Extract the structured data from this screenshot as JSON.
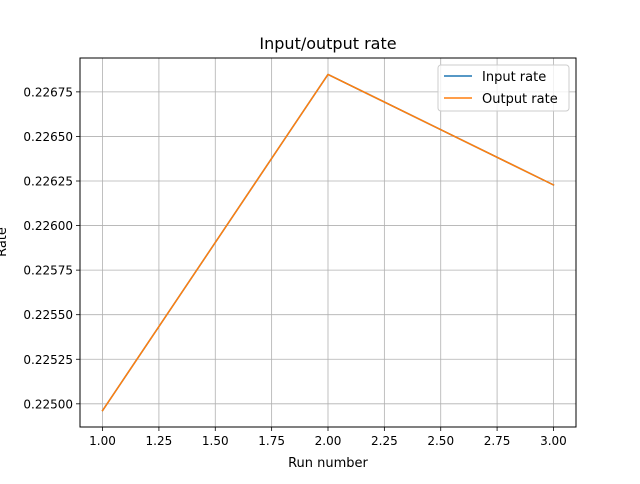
{
  "chart_data": {
    "type": "line",
    "title": "Input/output rate",
    "xlabel": "Run number",
    "ylabel": "Rate",
    "x": [
      1.0,
      2.0,
      3.0
    ],
    "series": [
      {
        "name": "Input rate",
        "color": "#1f77b4",
        "values": [
          0.224962,
          0.226848,
          0.226228
        ]
      },
      {
        "name": "Output rate",
        "color": "#ff7f0e",
        "values": [
          0.224962,
          0.226848,
          0.226228
        ]
      }
    ],
    "xlim": [
      0.9,
      3.1
    ],
    "ylim": [
      0.22487,
      0.22694
    ],
    "xticks": [
      1.0,
      1.25,
      1.5,
      1.75,
      2.0,
      2.25,
      2.5,
      2.75,
      3.0
    ],
    "xtick_labels": [
      "1.00",
      "1.25",
      "1.50",
      "1.75",
      "2.00",
      "2.25",
      "2.50",
      "2.75",
      "3.00"
    ],
    "yticks": [
      0.225,
      0.22525,
      0.2255,
      0.22575,
      0.226,
      0.22625,
      0.2265,
      0.22675
    ],
    "ytick_labels": [
      "0.22500",
      "0.22525",
      "0.22550",
      "0.22575",
      "0.22600",
      "0.22625",
      "0.22650",
      "0.22675"
    ],
    "grid": true,
    "legend_position": "top-right"
  }
}
